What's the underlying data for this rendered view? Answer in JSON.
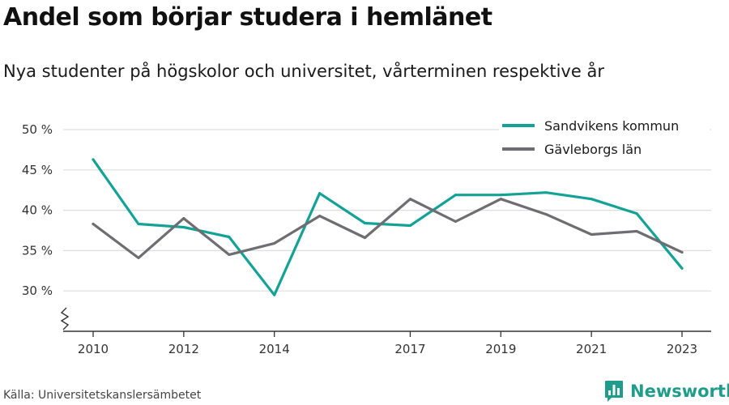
{
  "header": {
    "title": "Andel som börjar studera i hemlänet",
    "subtitle": "Nya studenter på högskolor och universitet, vårterminen respektive år"
  },
  "footer": {
    "source": "Källa: Universitetskanslersämbetet",
    "brand": "Newsworthy"
  },
  "colors": {
    "accent": "#13a295",
    "secondary": "#6d6d72",
    "grid": "#dddddd",
    "axis": "#333333",
    "brand": "#1f9c8a"
  },
  "icons": {
    "logo": "newsworthy-bar-chart-icon",
    "axis_break": "axis-break-zigzag-icon"
  },
  "chart_data": {
    "type": "line",
    "x": [
      2010,
      2011,
      2012,
      2013,
      2014,
      2015,
      2016,
      2017,
      2018,
      2019,
      2020,
      2021,
      2022,
      2023
    ],
    "x_tick_labels": [
      "2010",
      "2012",
      "2014",
      "2017",
      "2019",
      "2021",
      "2023"
    ],
    "y_ticks": [
      30,
      35,
      40,
      45,
      50
    ],
    "y_tick_labels": [
      "30 %",
      "35 %",
      "40 %",
      "45 %",
      "50 %"
    ],
    "ylim": [
      25,
      50
    ],
    "y_axis_break": true,
    "grid": true,
    "legend_position": "top-right",
    "series": [
      {
        "name": "Sandvikens kommun",
        "color": "#13a295",
        "values": [
          46.3,
          38.3,
          37.9,
          36.7,
          29.5,
          42.1,
          38.4,
          38.1,
          41.9,
          41.9,
          42.2,
          41.4,
          39.6,
          32.8
        ]
      },
      {
        "name": "Gävleborgs län",
        "color": "#6d6d72",
        "values": [
          38.3,
          34.1,
          39.0,
          34.5,
          35.9,
          39.3,
          36.6,
          41.4,
          38.6,
          41.4,
          39.5,
          37.0,
          37.4,
          34.8
        ]
      }
    ]
  }
}
